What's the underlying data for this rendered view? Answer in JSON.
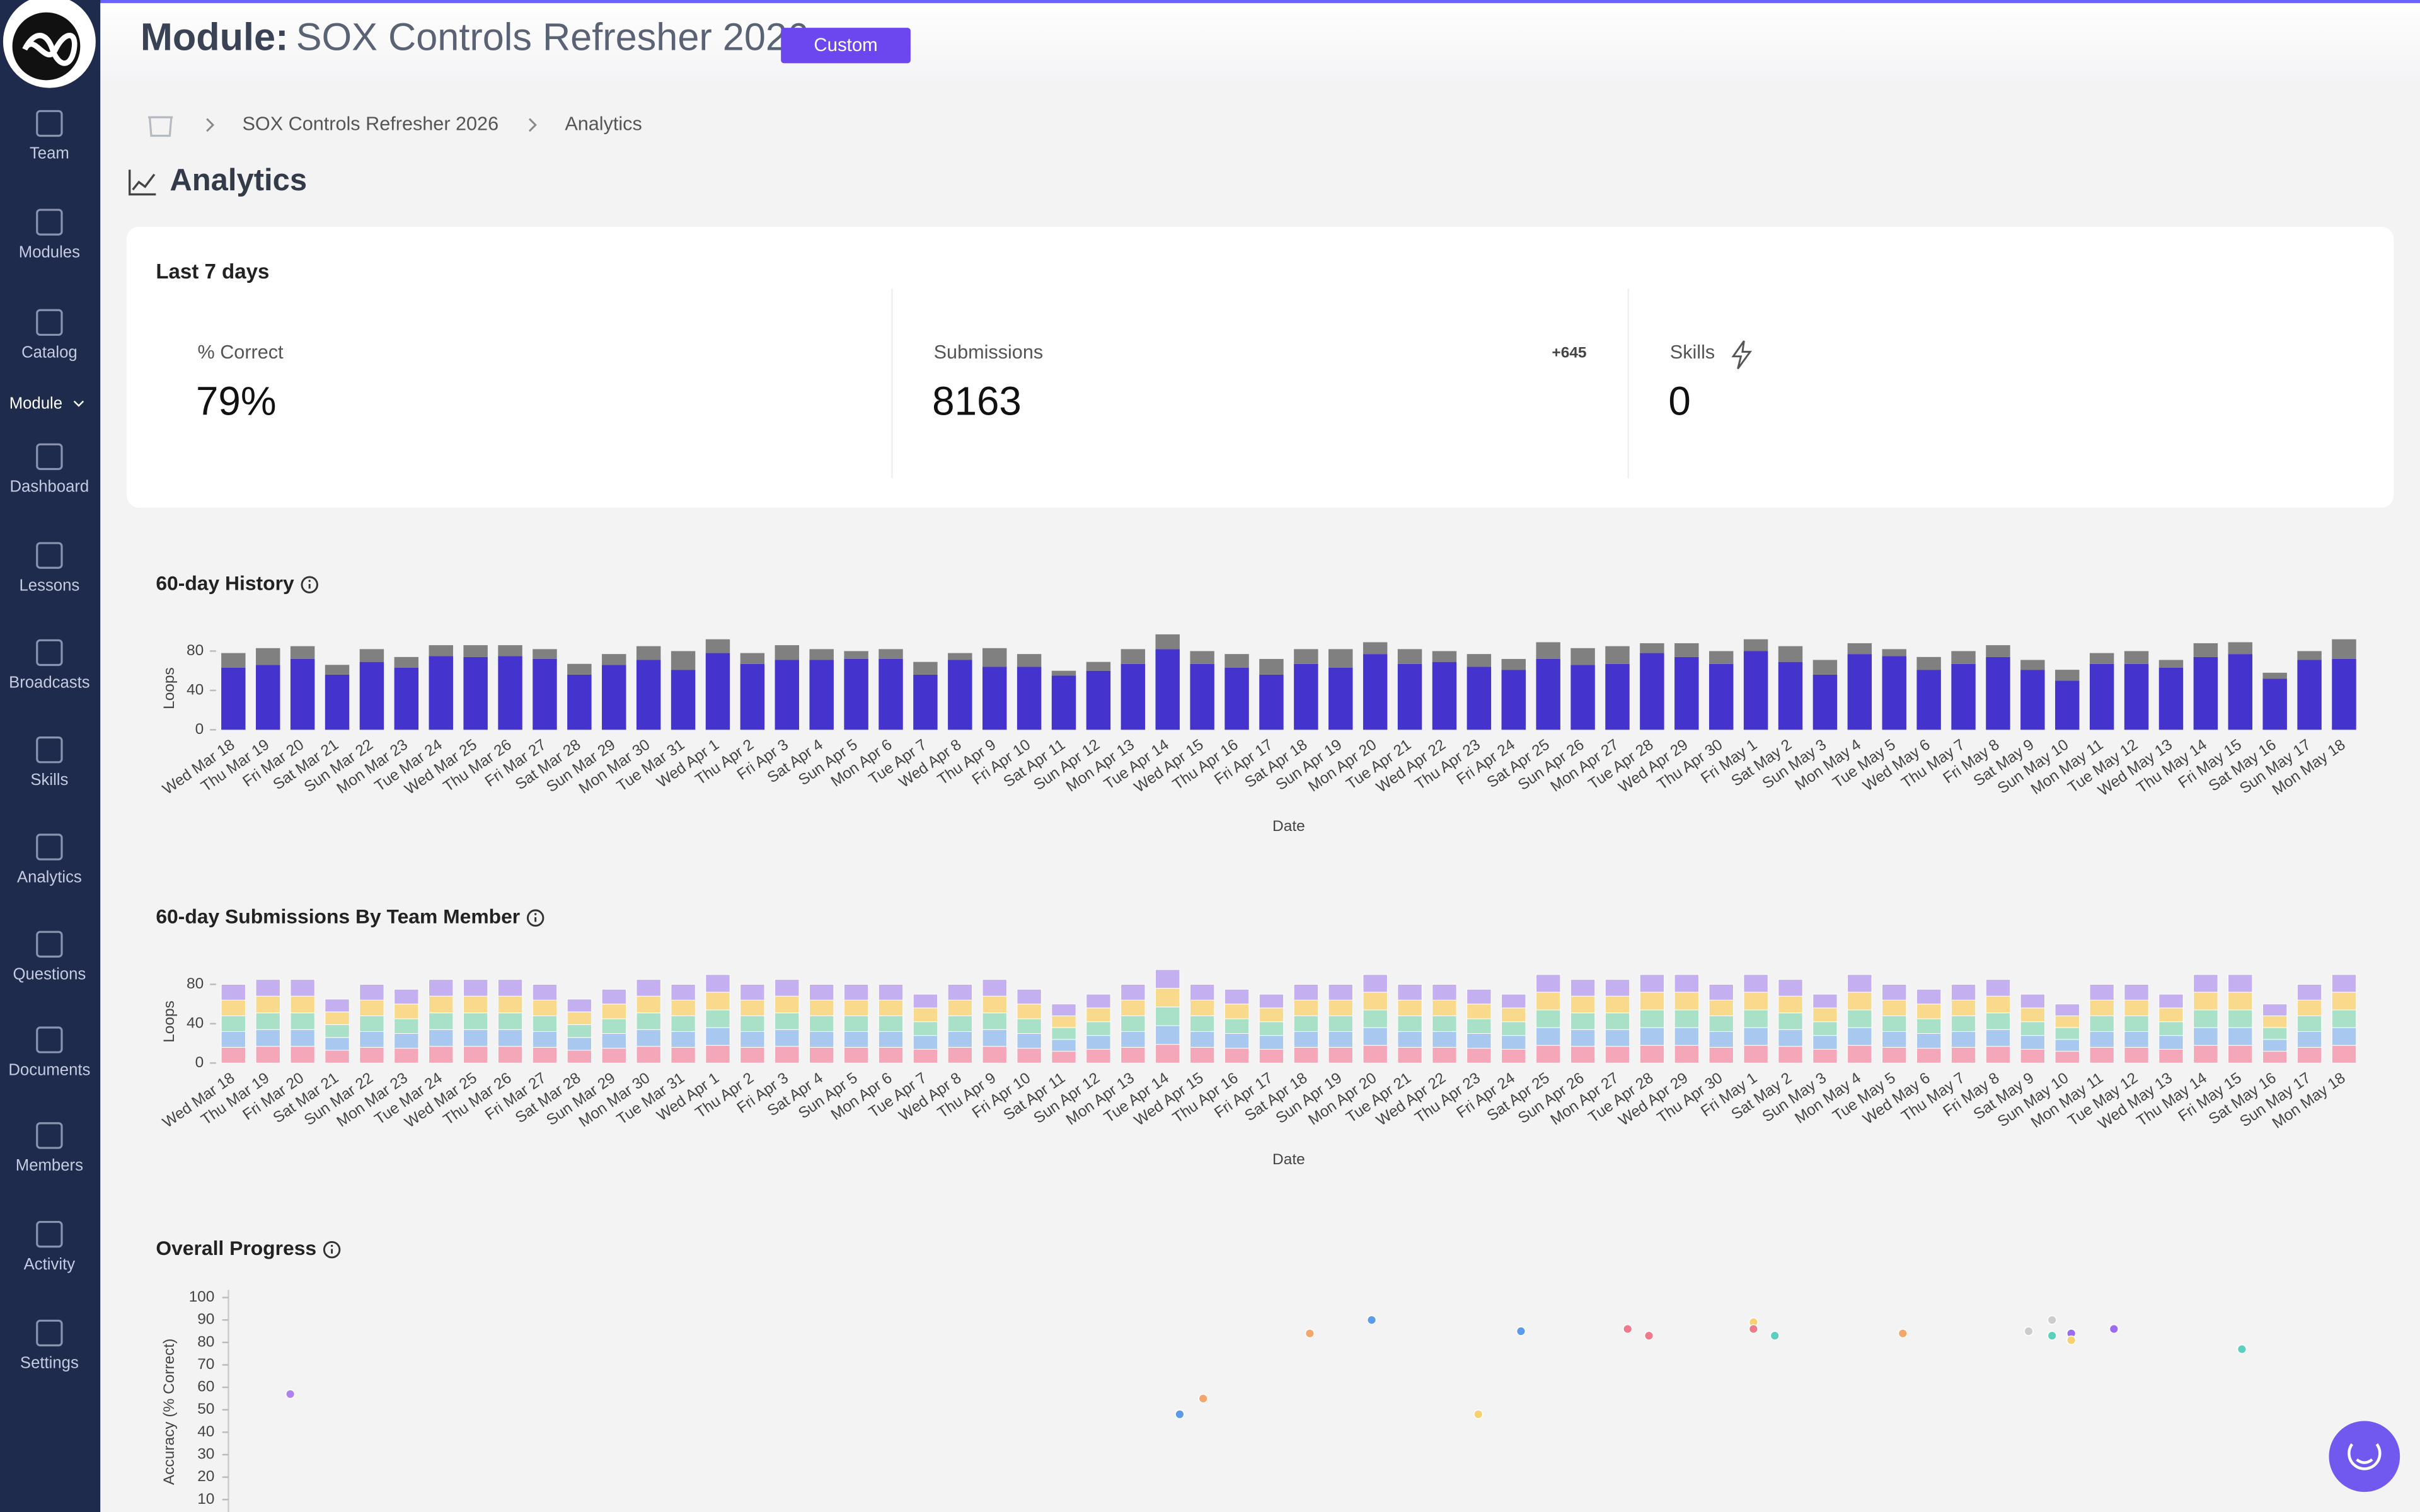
{
  "header": {
    "prefix": "Module:",
    "title": "SOX Controls Refresher 2026",
    "badge": "Custom"
  },
  "sidebar": {
    "items": [
      "Team",
      "Modules",
      "Catalog"
    ],
    "section": "Module",
    "module_items": [
      "Dashboard",
      "Lessons",
      "Broadcasts",
      "Skills",
      "Analytics",
      "Questions",
      "Documents",
      "Members",
      "Activity",
      "Settings"
    ]
  },
  "breadcrumb": [
    "SOX Controls Refresher 2026",
    "Analytics"
  ],
  "page_title": "Analytics",
  "summary": {
    "title": "Last 7 days",
    "stats": [
      {
        "label": "% Correct",
        "value": "79%"
      },
      {
        "label": "Submissions",
        "value": "8163",
        "delta": "+645"
      },
      {
        "label": "Skills",
        "value": "0"
      }
    ]
  },
  "chart_data": [
    {
      "type": "bar",
      "stacked": true,
      "title": "60-day History",
      "xlabel": "Date",
      "ylabel": "Loops",
      "categories": [
        "Wed Mar 18",
        "Thu Mar 19",
        "Fri Mar 20",
        "Sat Mar 21",
        "Sun Mar 22",
        "Mon Mar 23",
        "Tue Mar 24",
        "Wed Mar 25",
        "Thu Mar 26",
        "Fri Mar 27",
        "Sat Mar 28",
        "Sun Mar 29",
        "Mon Mar 30",
        "Tue Mar 31",
        "Wed Apr 1",
        "Thu Apr 2",
        "Fri Apr 3",
        "Sat Apr 4",
        "Sun Apr 5",
        "Mon Apr 6",
        "Tue Apr 7",
        "Wed Apr 8",
        "Thu Apr 9",
        "Fri Apr 10",
        "Sat Apr 11",
        "Sun Apr 12",
        "Mon Apr 13",
        "Tue Apr 14",
        "Wed Apr 15",
        "Thu Apr 16",
        "Fri Apr 17",
        "Sat Apr 18",
        "Sun Apr 19",
        "Mon Apr 20",
        "Tue Apr 21",
        "Wed Apr 22",
        "Thu Apr 23",
        "Fri Apr 24",
        "Sat Apr 25",
        "Sun Apr 26",
        "Mon Apr 27",
        "Tue Apr 28",
        "Wed Apr 29",
        "Thu Apr 30",
        "Fri May 1",
        "Sat May 2",
        "Sun May 3",
        "Mon May 4",
        "Tue May 5",
        "Wed May 6",
        "Thu May 7",
        "Fri May 8",
        "Sat May 9",
        "Sun May 10",
        "Mon May 11",
        "Tue May 12",
        "Wed May 13",
        "Thu May 14",
        "Fri May 15",
        "Sat May 16",
        "Sun May 17",
        "Mon May 18"
      ],
      "series": [
        {
          "color": "#4433cc",
          "values": [
            63,
            66,
            72,
            56,
            69,
            63,
            75,
            74,
            75,
            72,
            56,
            66,
            71,
            61,
            78,
            67,
            71,
            71,
            72,
            72,
            56,
            71,
            64,
            64,
            55,
            60,
            67,
            82,
            67,
            63,
            56,
            67,
            63,
            77,
            67,
            69,
            64,
            61,
            72,
            66,
            67,
            78,
            74,
            67,
            80,
            69,
            56,
            77,
            75,
            61,
            67,
            74,
            61,
            50,
            67,
            67,
            63,
            74,
            77,
            52,
            71,
            72
          ]
        },
        {
          "color": "#808080",
          "values": [
            15,
            17,
            13,
            10,
            13,
            11,
            11,
            12,
            11,
            10,
            11,
            11,
            14,
            19,
            14,
            11,
            15,
            11,
            8,
            10,
            13,
            7,
            19,
            13,
            5,
            9,
            15,
            15,
            13,
            14,
            16,
            15,
            19,
            12,
            15,
            11,
            13,
            11,
            17,
            17,
            18,
            10,
            14,
            13,
            12,
            16,
            15,
            11,
            7,
            13,
            13,
            12,
            10,
            11,
            11,
            13,
            8,
            14,
            12,
            6,
            9,
            20
          ]
        }
      ],
      "ylim": [
        0,
        100
      ],
      "yticks": [
        0,
        40,
        80
      ]
    },
    {
      "type": "bar",
      "stacked": true,
      "title": "60-day Submissions By Team Member",
      "xlabel": "Date",
      "ylabel": "Loops",
      "categories": [
        "Wed Mar 18",
        "Thu Mar 19",
        "Fri Mar 20",
        "Sat Mar 21",
        "Sun Mar 22",
        "Mon Mar 23",
        "Tue Mar 24",
        "Wed Mar 25",
        "Thu Mar 26",
        "Fri Mar 27",
        "Sat Mar 28",
        "Sun Mar 29",
        "Mon Mar 30",
        "Tue Mar 31",
        "Wed Apr 1",
        "Thu Apr 2",
        "Fri Apr 3",
        "Sat Apr 4",
        "Sun Apr 5",
        "Mon Apr 6",
        "Tue Apr 7",
        "Wed Apr 8",
        "Thu Apr 9",
        "Fri Apr 10",
        "Sat Apr 11",
        "Sun Apr 12",
        "Mon Apr 13",
        "Tue Apr 14",
        "Wed Apr 15",
        "Thu Apr 16",
        "Fri Apr 17",
        "Sat Apr 18",
        "Sun Apr 19",
        "Mon Apr 20",
        "Tue Apr 21",
        "Wed Apr 22",
        "Thu Apr 23",
        "Fri Apr 24",
        "Sat Apr 25",
        "Sun Apr 26",
        "Mon Apr 27",
        "Tue Apr 28",
        "Wed Apr 29",
        "Thu Apr 30",
        "Fri May 1",
        "Sat May 2",
        "Sun May 3",
        "Mon May 4",
        "Tue May 5",
        "Wed May 6",
        "Thu May 7",
        "Fri May 8",
        "Sat May 9",
        "Sun May 10",
        "Mon May 11",
        "Tue May 12",
        "Wed May 13",
        "Thu May 14",
        "Fri May 15",
        "Sat May 16",
        "Sun May 17",
        "Mon May 18"
      ],
      "series": [
        {
          "color": "#f4a7b9",
          "values": [
            16,
            17,
            17,
            13,
            16,
            15,
            17,
            17,
            17,
            16,
            13,
            15,
            17,
            16,
            18,
            16,
            17,
            16,
            16,
            16,
            14,
            16,
            17,
            15,
            12,
            14,
            16,
            19,
            16,
            15,
            14,
            16,
            16,
            18,
            16,
            16,
            15,
            14,
            18,
            17,
            17,
            18,
            18,
            16,
            18,
            17,
            14,
            18,
            16,
            15,
            16,
            17,
            14,
            12,
            16,
            16,
            14,
            18,
            18,
            12,
            16,
            18
          ]
        },
        {
          "color": "#a8c8f0",
          "values": [
            16,
            17,
            17,
            13,
            16,
            15,
            17,
            17,
            17,
            16,
            13,
            15,
            17,
            16,
            18,
            16,
            17,
            16,
            16,
            16,
            14,
            16,
            17,
            15,
            12,
            14,
            16,
            19,
            16,
            15,
            14,
            16,
            16,
            18,
            16,
            16,
            15,
            14,
            18,
            17,
            17,
            18,
            18,
            16,
            18,
            17,
            14,
            18,
            16,
            15,
            16,
            17,
            14,
            12,
            16,
            16,
            14,
            18,
            18,
            12,
            16,
            18
          ]
        },
        {
          "color": "#a8e0c8",
          "values": [
            16,
            17,
            17,
            13,
            16,
            15,
            17,
            17,
            17,
            16,
            13,
            15,
            17,
            16,
            18,
            16,
            17,
            16,
            16,
            16,
            14,
            16,
            17,
            15,
            12,
            14,
            16,
            19,
            16,
            15,
            14,
            16,
            16,
            18,
            16,
            16,
            15,
            14,
            18,
            17,
            17,
            18,
            18,
            16,
            18,
            17,
            14,
            18,
            16,
            15,
            16,
            17,
            14,
            12,
            16,
            16,
            14,
            18,
            18,
            12,
            16,
            18
          ]
        },
        {
          "color": "#f9d98c",
          "values": [
            16,
            17,
            17,
            13,
            16,
            15,
            17,
            17,
            17,
            16,
            13,
            15,
            17,
            16,
            18,
            16,
            17,
            16,
            16,
            16,
            14,
            16,
            17,
            15,
            12,
            14,
            16,
            19,
            16,
            15,
            14,
            16,
            16,
            18,
            16,
            16,
            15,
            14,
            18,
            17,
            17,
            18,
            18,
            16,
            18,
            17,
            14,
            18,
            16,
            15,
            16,
            17,
            14,
            12,
            16,
            16,
            14,
            18,
            18,
            12,
            16,
            18
          ]
        },
        {
          "color": "#c4b0f0",
          "values": [
            16,
            17,
            17,
            13,
            16,
            15,
            17,
            17,
            17,
            16,
            13,
            15,
            17,
            16,
            18,
            16,
            17,
            16,
            16,
            16,
            14,
            16,
            17,
            15,
            12,
            14,
            16,
            19,
            16,
            15,
            14,
            16,
            16,
            18,
            16,
            16,
            15,
            14,
            18,
            17,
            17,
            18,
            18,
            16,
            18,
            17,
            14,
            18,
            16,
            15,
            16,
            17,
            14,
            12,
            16,
            16,
            14,
            18,
            18,
            12,
            16,
            18
          ]
        }
      ],
      "ylim": [
        0,
        100
      ],
      "yticks": [
        0,
        40,
        80
      ]
    },
    {
      "type": "scatter",
      "title": "Overall Progress",
      "ylabel": "Accuracy (% Correct)",
      "x": [
        2.9,
        44.6,
        45.7,
        50.7,
        53.6,
        58.6,
        60.6,
        65.6,
        66.6,
        71.5,
        71.5,
        72.5,
        78.5,
        84.4,
        85.5,
        85.5,
        86.4,
        86.4,
        88.4,
        94.4
      ],
      "values": [
        57,
        48,
        55,
        84,
        90,
        48,
        85,
        86,
        83,
        89,
        86,
        83,
        84,
        85,
        90,
        83,
        84,
        81,
        86,
        77
      ],
      "colors": [
        "#b07ff0",
        "#5b9bea",
        "#f5a66a",
        "#f5a66a",
        "#5b9bea",
        "#f9d070",
        "#5b9bea",
        "#f07a8a",
        "#f07a8a",
        "#f9d070",
        "#f07a8a",
        "#5ccfbf",
        "#f5a66a",
        "#cccccc",
        "#cccccc",
        "#5ccfbf",
        "#9b6cf0",
        "#f9d070",
        "#9b6cf0",
        "#5ccfbf"
      ],
      "xlim": [
        0,
        100
      ],
      "ylim": [
        0,
        100
      ],
      "yticks": [
        10,
        20,
        30,
        40,
        50,
        60,
        70,
        80,
        90,
        100
      ]
    }
  ]
}
